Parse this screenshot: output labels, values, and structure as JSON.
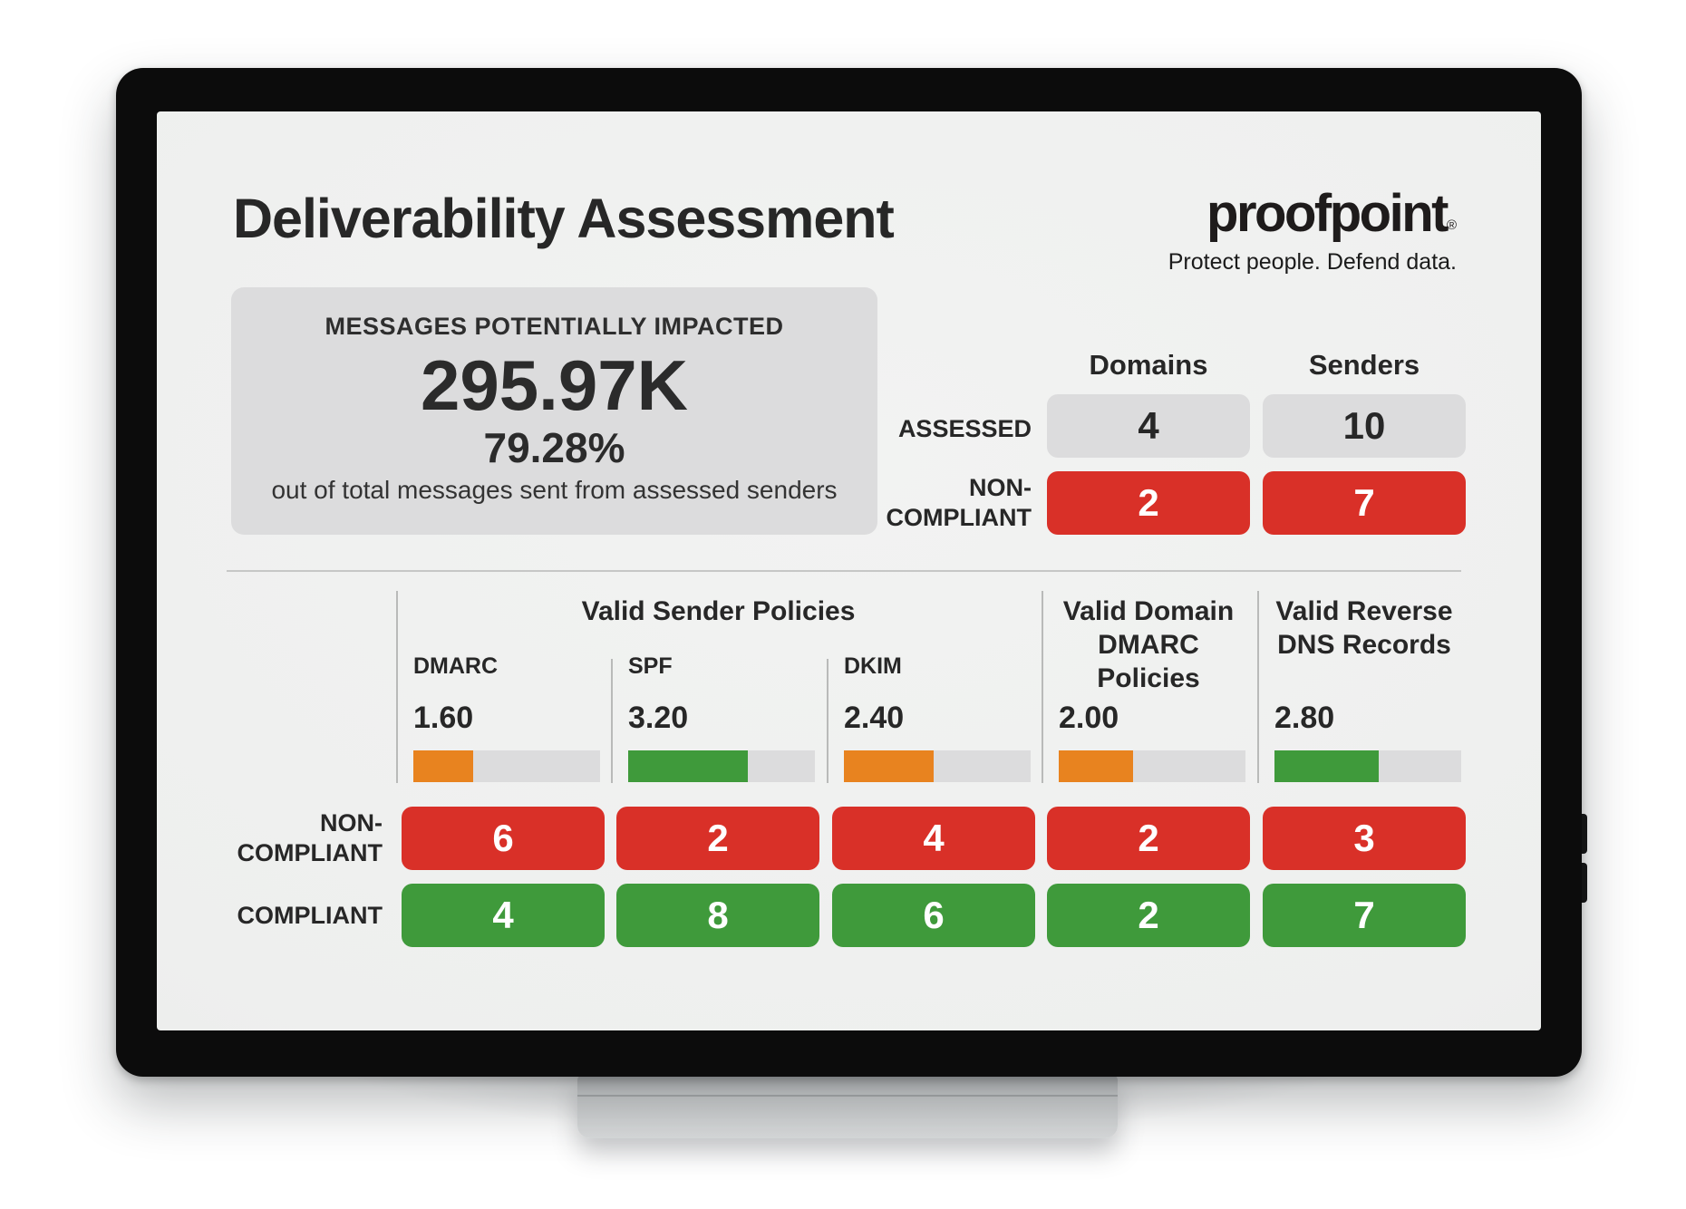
{
  "colors": {
    "red": "#d93028",
    "green": "#3f9a3b",
    "orange": "#e8831f",
    "track_gray": "#dcdcdd",
    "screen_bg": "#eeefee",
    "bezel_black": "#0c0c0c"
  },
  "header": {
    "title": "Deliverability Assessment"
  },
  "brand": {
    "logo": "proofpoint",
    "registered": "®",
    "tagline": "Protect people. Defend data."
  },
  "impact_card": {
    "title": "MESSAGES POTENTIALLY IMPACTED",
    "value": "295.97K",
    "percent": "79.28%",
    "subtext": "out of total messages sent from assessed senders"
  },
  "summary": {
    "col_headers": {
      "domains": "Domains",
      "senders": "Senders"
    },
    "assessed": {
      "label": "ASSESSED",
      "domains": "4",
      "senders": "10"
    },
    "non_compliant": {
      "label": "NON-\nCOMPLIANT",
      "domains": "2",
      "senders": "7"
    }
  },
  "assessment": {
    "group_header": "Valid Sender Policies",
    "max_score": 5,
    "row_labels": {
      "non_compliant": "NON-\nCOMPLIANT",
      "compliant": "COMPLIANT"
    },
    "columns": [
      {
        "label": "DMARC",
        "score": "1.60",
        "score_ratio": 0.32,
        "bar_color": "orange",
        "non_compliant": "6",
        "compliant": "4"
      },
      {
        "label": "SPF",
        "score": "3.20",
        "score_ratio": 0.64,
        "bar_color": "green",
        "non_compliant": "2",
        "compliant": "8"
      },
      {
        "label": "DKIM",
        "score": "2.40",
        "score_ratio": 0.48,
        "bar_color": "orange",
        "non_compliant": "4",
        "compliant": "6"
      },
      {
        "label": "Valid Domain\nDMARC\nPolicies",
        "score": "2.00",
        "score_ratio": 0.4,
        "bar_color": "orange",
        "non_compliant": "2",
        "compliant": "2"
      },
      {
        "label": "Valid Reverse\nDNS Records",
        "score": "2.80",
        "score_ratio": 0.56,
        "bar_color": "green",
        "non_compliant": "3",
        "compliant": "7"
      }
    ]
  }
}
